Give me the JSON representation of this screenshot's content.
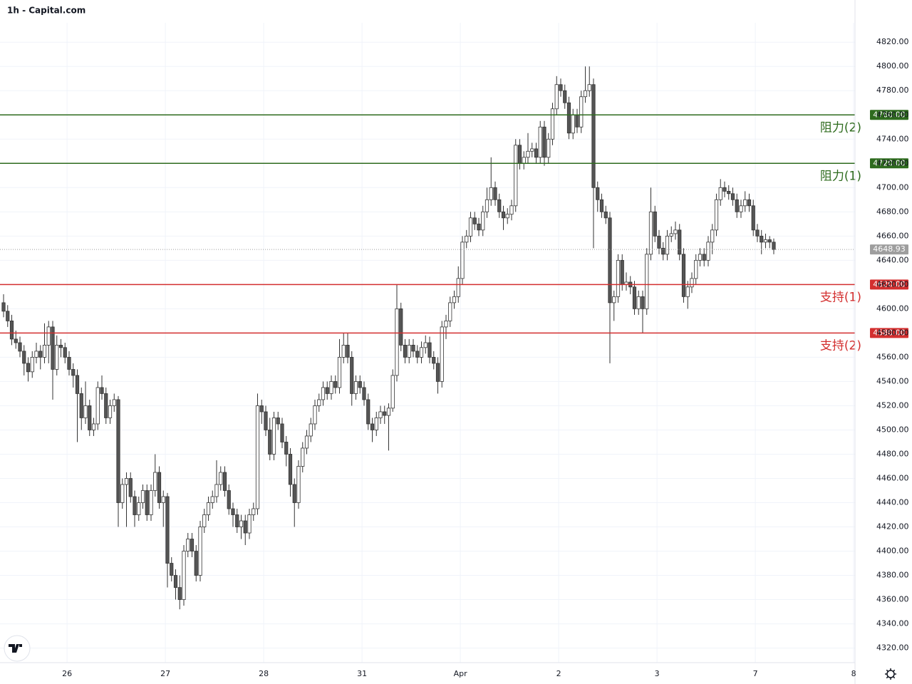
{
  "chart_data": {
    "type": "candlestick",
    "title": "1h - Capital.com",
    "ylim": [
      4308,
      4836
    ],
    "yticks": [
      {
        "value": 4320,
        "label": "4320.00"
      },
      {
        "value": 4340,
        "label": "4340.00"
      },
      {
        "value": 4360,
        "label": "4360.00"
      },
      {
        "value": 4380,
        "label": "4380.00"
      },
      {
        "value": 4400,
        "label": "4400.00"
      },
      {
        "value": 4420,
        "label": "4420.00"
      },
      {
        "value": 4440,
        "label": "4440.00"
      },
      {
        "value": 4460,
        "label": "4460.00"
      },
      {
        "value": 4480,
        "label": "4480.00"
      },
      {
        "value": 4500,
        "label": "4500.00"
      },
      {
        "value": 4520,
        "label": "4520.00"
      },
      {
        "value": 4540,
        "label": "4540.00"
      },
      {
        "value": 4560,
        "label": "4560.00"
      },
      {
        "value": 4580,
        "label": "4580.00"
      },
      {
        "value": 4600,
        "label": "4600.00"
      },
      {
        "value": 4620,
        "label": "4620.00"
      },
      {
        "value": 4640,
        "label": "4640.00"
      },
      {
        "value": 4660,
        "label": "4660.00"
      },
      {
        "value": 4680,
        "label": "4680.00"
      },
      {
        "value": 4700,
        "label": "4700.00"
      },
      {
        "value": 4720,
        "label": "4720.00"
      },
      {
        "value": 4740,
        "label": "4740.00"
      },
      {
        "value": 4760,
        "label": "4760.00"
      },
      {
        "value": 4780,
        "label": "4780.00"
      },
      {
        "value": 4800,
        "label": "4800.00"
      },
      {
        "value": 4820,
        "label": "4820.00"
      }
    ],
    "xlim": [
      -0.87,
      207.83
    ],
    "xticks": [
      {
        "value": 15.5,
        "label": "26"
      },
      {
        "value": 39.5,
        "label": "27"
      },
      {
        "value": 63.5,
        "label": "28"
      },
      {
        "value": 87.5,
        "label": "31"
      },
      {
        "value": 111.5,
        "label": "Apr"
      },
      {
        "value": 135.5,
        "label": "2"
      },
      {
        "value": 159.5,
        "label": "3"
      },
      {
        "value": 183.5,
        "label": "7"
      },
      {
        "value": 207.5,
        "label": "8"
      }
    ],
    "up_color": "#ffffff",
    "down_color": "#555555",
    "wick_color": "#333333",
    "levels": [
      {
        "value": 4760,
        "label": "4760.00",
        "name": "阻力(2)",
        "color": "#2e6b1e"
      },
      {
        "value": 4720,
        "label": "4720.00",
        "name": "阻力(1)",
        "color": "#2e6b1e"
      },
      {
        "value": 4620,
        "label": "4620.00",
        "name": "支持(1)",
        "color": "#d32f2f"
      },
      {
        "value": 4580,
        "label": "4580.00",
        "name": "支持(2)",
        "color": "#d32f2f"
      }
    ],
    "last_price": {
      "value": 4648.93,
      "label": "4648.93",
      "color": "#9e9e9e"
    },
    "candles": [
      [
        4605,
        4612,
        4593,
        4598
      ],
      [
        4598,
        4603,
        4585,
        4590
      ],
      [
        4590,
        4595,
        4570,
        4575
      ],
      [
        4575,
        4582,
        4567,
        4572
      ],
      [
        4572,
        4577,
        4560,
        4565
      ],
      [
        4565,
        4570,
        4545,
        4555
      ],
      [
        4555,
        4560,
        4540,
        4548
      ],
      [
        4548,
        4565,
        4543,
        4560
      ],
      [
        4560,
        4572,
        4555,
        4565
      ],
      [
        4565,
        4570,
        4550,
        4560
      ],
      [
        4560,
        4588,
        4555,
        4570
      ],
      [
        4570,
        4590,
        4555,
        4585
      ],
      [
        4585,
        4590,
        4525,
        4550
      ],
      [
        4550,
        4578,
        4545,
        4570
      ],
      [
        4570,
        4575,
        4560,
        4568
      ],
      [
        4568,
        4572,
        4555,
        4560
      ],
      [
        4560,
        4565,
        4545,
        4550
      ],
      [
        4550,
        4555,
        4535,
        4545
      ],
      [
        4545,
        4550,
        4490,
        4530
      ],
      [
        4530,
        4535,
        4500,
        4510
      ],
      [
        4510,
        4540,
        4505,
        4520
      ],
      [
        4520,
        4525,
        4495,
        4500
      ],
      [
        4500,
        4510,
        4495,
        4505
      ],
      [
        4505,
        4540,
        4500,
        4535
      ],
      [
        4535,
        4545,
        4525,
        4530
      ],
      [
        4530,
        4535,
        4505,
        4510
      ],
      [
        4510,
        4525,
        4505,
        4520
      ],
      [
        4520,
        4530,
        4515,
        4525
      ],
      [
        4525,
        4528,
        4420,
        4440
      ],
      [
        4440,
        4460,
        4435,
        4455
      ],
      [
        4455,
        4465,
        4420,
        4460
      ],
      [
        4460,
        4465,
        4440,
        4445
      ],
      [
        4445,
        4450,
        4420,
        4430
      ],
      [
        4430,
        4445,
        4425,
        4440
      ],
      [
        4440,
        4455,
        4435,
        4450
      ],
      [
        4450,
        4455,
        4425,
        4430
      ],
      [
        4430,
        4455,
        4425,
        4450
      ],
      [
        4450,
        4480,
        4445,
        4465
      ],
      [
        4465,
        4470,
        4435,
        4440
      ],
      [
        4440,
        4450,
        4420,
        4445
      ],
      [
        4445,
        4448,
        4370,
        4390
      ],
      [
        4390,
        4395,
        4375,
        4380
      ],
      [
        4380,
        4385,
        4360,
        4370
      ],
      [
        4370,
        4380,
        4352,
        4360
      ],
      [
        4360,
        4405,
        4355,
        4400
      ],
      [
        4400,
        4415,
        4395,
        4410
      ],
      [
        4410,
        4415,
        4395,
        4400
      ],
      [
        4400,
        4405,
        4375,
        4380
      ],
      [
        4380,
        4425,
        4375,
        4420
      ],
      [
        4420,
        4435,
        4415,
        4430
      ],
      [
        4430,
        4445,
        4425,
        4440
      ],
      [
        4440,
        4450,
        4435,
        4445
      ],
      [
        4445,
        4475,
        4440,
        4455
      ],
      [
        4455,
        4470,
        4450,
        4465
      ],
      [
        4465,
        4470,
        4445,
        4450
      ],
      [
        4450,
        4455,
        4430,
        4435
      ],
      [
        4435,
        4440,
        4420,
        4430
      ],
      [
        4430,
        4435,
        4415,
        4420
      ],
      [
        4420,
        4430,
        4410,
        4425
      ],
      [
        4425,
        4430,
        4405,
        4415
      ],
      [
        4415,
        4435,
        4410,
        4430
      ],
      [
        4430,
        4440,
        4425,
        4435
      ],
      [
        4435,
        4530,
        4430,
        4520
      ],
      [
        4520,
        4525,
        4505,
        4515
      ],
      [
        4515,
        4520,
        4495,
        4500
      ],
      [
        4500,
        4510,
        4475,
        4480
      ],
      [
        4480,
        4515,
        4475,
        4510
      ],
      [
        4510,
        4515,
        4500,
        4505
      ],
      [
        4505,
        4510,
        4485,
        4490
      ],
      [
        4490,
        4495,
        4470,
        4480
      ],
      [
        4480,
        4485,
        4445,
        4455
      ],
      [
        4455,
        4460,
        4420,
        4440
      ],
      [
        4440,
        4475,
        4435,
        4470
      ],
      [
        4470,
        4490,
        4465,
        4485
      ],
      [
        4485,
        4500,
        4480,
        4495
      ],
      [
        4495,
        4510,
        4490,
        4505
      ],
      [
        4505,
        4525,
        4500,
        4520
      ],
      [
        4520,
        4530,
        4515,
        4525
      ],
      [
        4525,
        4540,
        4520,
        4535
      ],
      [
        4535,
        4540,
        4525,
        4530
      ],
      [
        4530,
        4545,
        4525,
        4540
      ],
      [
        4540,
        4545,
        4530,
        4535
      ],
      [
        4535,
        4575,
        4530,
        4560
      ],
      [
        4560,
        4580,
        4555,
        4570
      ],
      [
        4570,
        4580,
        4555,
        4560
      ],
      [
        4560,
        4565,
        4520,
        4530
      ],
      [
        4530,
        4545,
        4525,
        4540
      ],
      [
        4540,
        4545,
        4530,
        4535
      ],
      [
        4535,
        4540,
        4520,
        4525
      ],
      [
        4525,
        4530,
        4500,
        4505
      ],
      [
        4505,
        4510,
        4490,
        4500
      ],
      [
        4500,
        4515,
        4495,
        4510
      ],
      [
        4510,
        4520,
        4505,
        4515
      ],
      [
        4515,
        4520,
        4505,
        4512
      ],
      [
        4512,
        4522,
        4483,
        4518
      ],
      [
        4518,
        4550,
        4515,
        4545
      ],
      [
        4545,
        4620,
        4540,
        4600
      ],
      [
        4600,
        4605,
        4565,
        4570
      ],
      [
        4570,
        4575,
        4555,
        4560
      ],
      [
        4560,
        4575,
        4555,
        4570
      ],
      [
        4570,
        4575,
        4560,
        4565
      ],
      [
        4565,
        4570,
        4555,
        4560
      ],
      [
        4560,
        4573,
        4555,
        4568
      ],
      [
        4568,
        4578,
        4563,
        4572
      ],
      [
        4572,
        4577,
        4555,
        4560
      ],
      [
        4560,
        4565,
        4550,
        4555
      ],
      [
        4555,
        4560,
        4530,
        4540
      ],
      [
        4540,
        4590,
        4535,
        4585
      ],
      [
        4585,
        4595,
        4575,
        4590
      ],
      [
        4590,
        4610,
        4585,
        4605
      ],
      [
        4605,
        4615,
        4600,
        4610
      ],
      [
        4610,
        4635,
        4605,
        4625
      ],
      [
        4625,
        4660,
        4620,
        4655
      ],
      [
        4655,
        4665,
        4650,
        4660
      ],
      [
        4660,
        4680,
        4655,
        4675
      ],
      [
        4675,
        4680,
        4665,
        4670
      ],
      [
        4670,
        4675,
        4660,
        4665
      ],
      [
        4665,
        4685,
        4660,
        4680
      ],
      [
        4680,
        4700,
        4675,
        4690
      ],
      [
        4690,
        4725,
        4685,
        4700
      ],
      [
        4700,
        4705,
        4685,
        4690
      ],
      [
        4690,
        4695,
        4675,
        4680
      ],
      [
        4680,
        4685,
        4665,
        4675
      ],
      [
        4675,
        4683,
        4670,
        4678
      ],
      [
        4678,
        4690,
        4673,
        4685
      ],
      [
        4685,
        4740,
        4680,
        4735
      ],
      [
        4735,
        4740,
        4715,
        4720
      ],
      [
        4720,
        4730,
        4715,
        4725
      ],
      [
        4725,
        4745,
        4720,
        4730
      ],
      [
        4730,
        4737,
        4725,
        4732
      ],
      [
        4732,
        4737,
        4720,
        4725
      ],
      [
        4725,
        4755,
        4720,
        4750
      ],
      [
        4750,
        4755,
        4718,
        4725
      ],
      [
        4725,
        4745,
        4720,
        4740
      ],
      [
        4740,
        4770,
        4735,
        4765
      ],
      [
        4765,
        4792,
        4760,
        4785
      ],
      [
        4785,
        4790,
        4775,
        4780
      ],
      [
        4780,
        4785,
        4765,
        4770
      ],
      [
        4770,
        4775,
        4740,
        4745
      ],
      [
        4745,
        4765,
        4740,
        4760
      ],
      [
        4760,
        4765,
        4745,
        4750
      ],
      [
        4750,
        4780,
        4745,
        4775
      ],
      [
        4775,
        4800,
        4770,
        4780
      ],
      [
        4780,
        4800,
        4775,
        4785
      ],
      [
        4785,
        4790,
        4650,
        4700
      ],
      [
        4700,
        4705,
        4680,
        4690
      ],
      [
        4690,
        4695,
        4675,
        4680
      ],
      [
        4680,
        4685,
        4670,
        4675
      ],
      [
        4675,
        4680,
        4555,
        4605
      ],
      [
        4605,
        4615,
        4590,
        4610
      ],
      [
        4610,
        4645,
        4605,
        4640
      ],
      [
        4640,
        4645,
        4615,
        4620
      ],
      [
        4620,
        4630,
        4615,
        4622
      ],
      [
        4622,
        4627,
        4612,
        4618
      ],
      [
        4618,
        4623,
        4595,
        4600
      ],
      [
        4600,
        4615,
        4595,
        4610
      ],
      [
        4610,
        4615,
        4580,
        4600
      ],
      [
        4600,
        4650,
        4595,
        4645
      ],
      [
        4645,
        4700,
        4640,
        4680
      ],
      [
        4680,
        4685,
        4655,
        4660
      ],
      [
        4660,
        4665,
        4645,
        4650
      ],
      [
        4650,
        4655,
        4640,
        4645
      ],
      [
        4645,
        4665,
        4640,
        4660
      ],
      [
        4660,
        4668,
        4655,
        4662
      ],
      [
        4662,
        4672,
        4657,
        4665
      ],
      [
        4665,
        4670,
        4640,
        4645
      ],
      [
        4645,
        4650,
        4605,
        4610
      ],
      [
        4610,
        4623,
        4600,
        4618
      ],
      [
        4618,
        4630,
        4613,
        4625
      ],
      [
        4625,
        4645,
        4620,
        4640
      ],
      [
        4640,
        4650,
        4635,
        4645
      ],
      [
        4645,
        4650,
        4635,
        4640
      ],
      [
        4640,
        4660,
        4635,
        4655
      ],
      [
        4655,
        4670,
        4645,
        4665
      ],
      [
        4665,
        4695,
        4660,
        4690
      ],
      [
        4690,
        4707,
        4685,
        4700
      ],
      [
        4700,
        4705,
        4692,
        4697
      ],
      [
        4697,
        4702,
        4690,
        4695
      ],
      [
        4695,
        4700,
        4685,
        4690
      ],
      [
        4690,
        4695,
        4675,
        4680
      ],
      [
        4680,
        4690,
        4675,
        4685
      ],
      [
        4685,
        4697,
        4680,
        4690
      ],
      [
        4690,
        4695,
        4680,
        4685
      ],
      [
        4685,
        4690,
        4660,
        4665
      ],
      [
        4665,
        4670,
        4655,
        4660
      ],
      [
        4660,
        4665,
        4645,
        4655
      ],
      [
        4655,
        4662,
        4650,
        4657
      ],
      [
        4657,
        4660,
        4650,
        4655
      ],
      [
        4655,
        4658,
        4645,
        4648.93
      ]
    ]
  }
}
